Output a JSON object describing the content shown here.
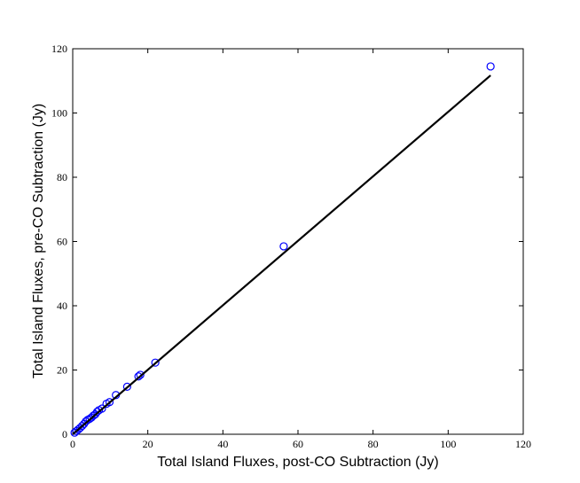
{
  "chart_data": {
    "type": "scatter",
    "xlabel": "Total Island Fluxes, post-CO Subtraction (Jy)",
    "ylabel": "Total Island Fluxes, pre-CO Subtraction (Jy)",
    "xlim": [
      0,
      120
    ],
    "ylim": [
      0,
      120
    ],
    "xticks": [
      0,
      20,
      40,
      60,
      80,
      100,
      120
    ],
    "yticks": [
      0,
      20,
      40,
      60,
      80,
      100,
      120
    ],
    "series": [
      {
        "type": "scatter",
        "color": "#0000ff",
        "x": [
          111.3,
          56.2,
          22,
          18,
          17.5,
          14.5,
          11.5,
          9.8,
          9,
          7.8,
          7,
          6.5,
          6,
          5.5,
          5,
          4.5,
          4,
          3.5,
          3,
          2.5,
          2,
          1.5,
          1,
          0.5
        ],
        "values": [
          114.5,
          58.5,
          22.3,
          18.5,
          18,
          14.8,
          12.2,
          10,
          9.5,
          8,
          7.5,
          7,
          6.2,
          5.8,
          5.2,
          4.8,
          4.5,
          4,
          3.2,
          2.6,
          2,
          1.5,
          1,
          0.5
        ]
      },
      {
        "type": "line",
        "color": "#000000",
        "x": [
          0,
          111.3
        ],
        "values": [
          0,
          111.7
        ]
      }
    ]
  }
}
